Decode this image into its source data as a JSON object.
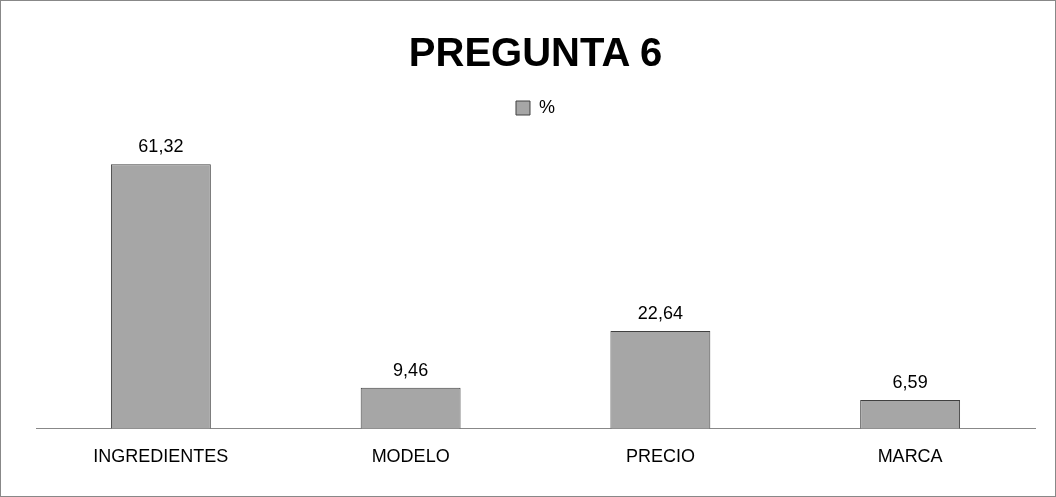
{
  "chart_data": {
    "type": "bar",
    "title": "PREGUNTA 6",
    "categories": [
      "INGREDIENTES",
      "MODELO",
      "PRECIO",
      "MARCA"
    ],
    "series": [
      {
        "name": "%",
        "color": "#a6a6a6",
        "values": [
          61.32,
          9.46,
          22.64,
          6.59
        ],
        "value_labels": [
          "61,32",
          "9,46",
          "22,64",
          "6,59"
        ]
      }
    ],
    "legend": "top",
    "grid": false,
    "tick_labels": "x"
  }
}
